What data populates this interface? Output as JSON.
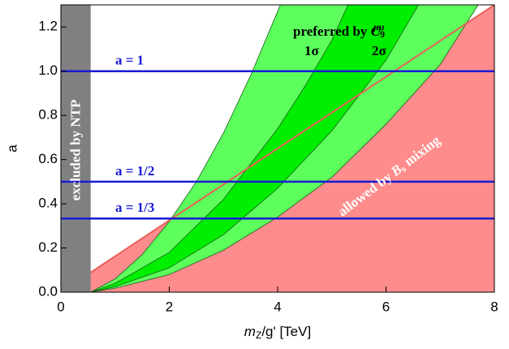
{
  "chart_data": {
    "type": "region",
    "x_label": {
      "symbol": "m",
      "sub": "Z",
      "rest": "/g' [TeV]"
    },
    "y_label": "a",
    "xlim": [
      0,
      8
    ],
    "ylim": [
      0,
      1.3
    ],
    "xticks": [
      0,
      2,
      4,
      6,
      8
    ],
    "yticks": [
      {
        "value": 0,
        "label": "0.0"
      },
      {
        "value": 0.2,
        "label": "0.2"
      },
      {
        "value": 0.4,
        "label": "0.4"
      },
      {
        "value": 0.6,
        "label": "0.6"
      },
      {
        "value": 0.8,
        "label": "0.8"
      },
      {
        "value": 1.0,
        "label": "1.0"
      },
      {
        "value": 1.2,
        "label": "1.2"
      }
    ],
    "excluded": {
      "label": "excluded by NTP",
      "x_max": 0.55,
      "color": "#808080"
    },
    "allowed": {
      "label": {
        "pre": "allowed by ",
        "symbol": "B",
        "sub": "s",
        "post": " mixing"
      },
      "x": [
        0,
        8
      ],
      "y": [
        0,
        1.3
      ],
      "color": "#ff8c8c",
      "line_color": "#e8605a"
    },
    "preferred_label": {
      "pre": "preferred by ",
      "symbol": "C",
      "sub": "9",
      "sup": "μμ"
    },
    "bands": [
      {
        "name": "2σ",
        "color": "#5cff5c",
        "left": {
          "x": [
            0.55,
            1,
            1.5,
            2,
            2.5,
            3,
            3.5,
            4,
            4.05
          ],
          "y": [
            0,
            0.06,
            0.17,
            0.32,
            0.5,
            0.72,
            0.98,
            1.27,
            1.3
          ]
        },
        "right": {
          "x": [
            0.55,
            1,
            2,
            3,
            4,
            5,
            6,
            7,
            7.7
          ],
          "y": [
            0,
            0.018,
            0.08,
            0.19,
            0.34,
            0.52,
            0.76,
            1.03,
            1.3
          ]
        }
      },
      {
        "name": "1σ",
        "color": "#00ee00",
        "left": {
          "x": [
            0.55,
            1,
            2,
            3,
            4,
            4.5,
            5,
            5.3
          ],
          "y": [
            0,
            0.04,
            0.18,
            0.42,
            0.74,
            0.93,
            1.14,
            1.3
          ]
        },
        "right": {
          "x": [
            0.55,
            1,
            2,
            3,
            4,
            5,
            6,
            6.6
          ],
          "y": [
            0,
            0.025,
            0.11,
            0.26,
            0.47,
            0.73,
            1.05,
            1.3
          ]
        }
      }
    ],
    "lines": [
      {
        "label": "a = 1",
        "value": 1
      },
      {
        "label": "a = 1/2",
        "value": 0.5
      },
      {
        "label": "a = 1/3",
        "value": 0.3333
      }
    ],
    "line_color": "#1a1ad6"
  }
}
